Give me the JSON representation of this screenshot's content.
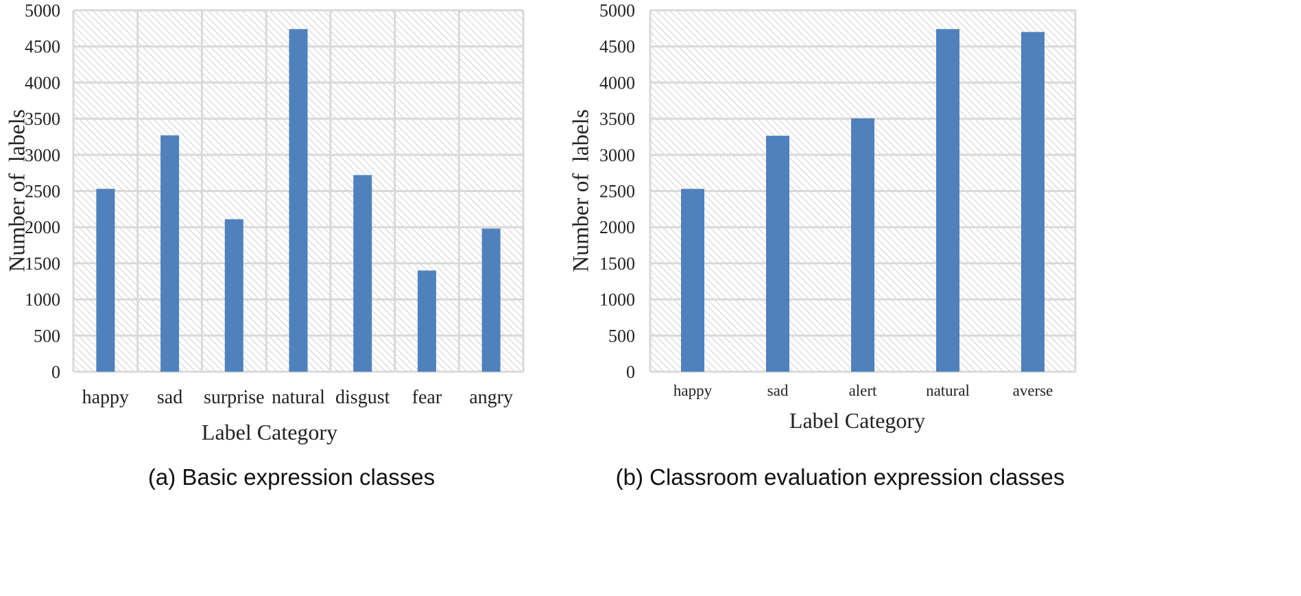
{
  "chart_data": [
    {
      "type": "bar",
      "categories": [
        "happy",
        "sad",
        "surprise",
        "natural",
        "disgust",
        "fear",
        "angry"
      ],
      "values": [
        2530,
        3270,
        2110,
        4740,
        2720,
        1400,
        1980
      ],
      "ylabel": "Number of  labels",
      "xlabel": "Label Category",
      "ylim": [
        0,
        5000
      ],
      "yticks": [
        "0",
        "500",
        "1000",
        "1500",
        "2000",
        "2500",
        "3000",
        "3500",
        "4000",
        "4500",
        "5000"
      ],
      "caption": "(a) Basic expression classes",
      "bar_color": "#4f81bd",
      "grid": true,
      "background": "diagonal hatch"
    },
    {
      "type": "bar",
      "categories": [
        "happy",
        "sad",
        "alert",
        "natural",
        "averse"
      ],
      "values": [
        2530,
        3265,
        3505,
        4740,
        4700
      ],
      "ylabel": "Number of  labels",
      "xlabel": "Label Category",
      "ylim": [
        0,
        5000
      ],
      "yticks": [
        "0",
        "500",
        "1000",
        "1500",
        "2000",
        "2500",
        "3000",
        "3500",
        "4000",
        "4500",
        "5000"
      ],
      "caption": "(b) Classroom evaluation expression classes",
      "bar_color": "#4f81bd",
      "grid": true,
      "background": "diagonal hatch"
    }
  ]
}
